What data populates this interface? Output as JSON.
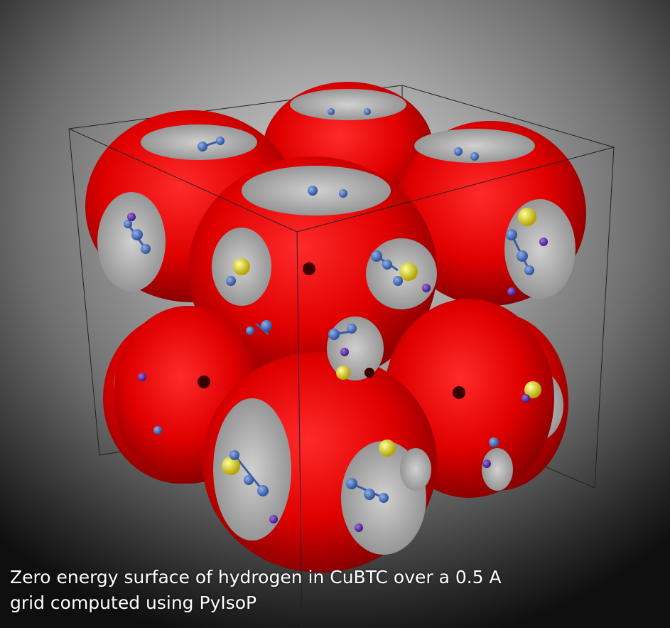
{
  "caption": {
    "line1": "Zero energy surface of hydrogen in CuBTC over a 0.5 A",
    "line2": "grid computed using PyIsoP"
  },
  "colors": {
    "surface": "#e00000",
    "surface_shadow": "#7a0000",
    "surface_highlight": "#ff2a2a",
    "carbon_atom": "#4a74c4",
    "oxygen_atom": "#6a2ab0",
    "copper_atom": "#f0e020",
    "bounding_box": "#222222",
    "caption_text": "#ffffff"
  },
  "icons": [
    "isosurface-render",
    "bounding-box",
    "atom-sphere"
  ]
}
